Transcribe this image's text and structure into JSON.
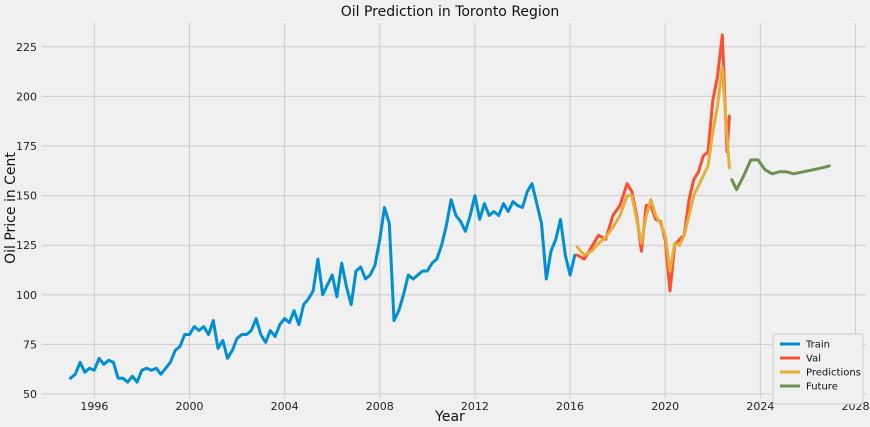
{
  "chart_data": {
    "type": "line",
    "title": "Oil Prediction in Toronto Region",
    "xlabel": "Year",
    "ylabel": "Oil Price in Cent",
    "xlim": [
      1993.8,
      2028.4
    ],
    "ylim": [
      48,
      237
    ],
    "x_ticks": [
      1996,
      2000,
      2004,
      2008,
      2012,
      2016,
      2020,
      2024,
      2028
    ],
    "y_ticks": [
      50,
      75,
      100,
      125,
      150,
      175,
      200,
      225
    ],
    "grid": true,
    "legend_position": "bottom-right",
    "series": [
      {
        "name": "Train",
        "color": "#008fd5",
        "x": [
          1995.0,
          1995.2,
          1995.4,
          1995.6,
          1995.8,
          1996.0,
          1996.2,
          1996.4,
          1996.6,
          1996.8,
          1997.0,
          1997.2,
          1997.4,
          1997.6,
          1997.8,
          1998.0,
          1998.2,
          1998.4,
          1998.6,
          1998.8,
          1999.0,
          1999.2,
          1999.4,
          1999.6,
          1999.8,
          2000.0,
          2000.2,
          2000.4,
          2000.6,
          2000.8,
          2001.0,
          2001.2,
          2001.4,
          2001.6,
          2001.8,
          2002.0,
          2002.2,
          2002.4,
          2002.6,
          2002.8,
          2003.0,
          2003.2,
          2003.4,
          2003.6,
          2003.8,
          2004.0,
          2004.2,
          2004.4,
          2004.6,
          2004.8,
          2005.0,
          2005.2,
          2005.4,
          2005.6,
          2005.8,
          2006.0,
          2006.2,
          2006.4,
          2006.6,
          2006.8,
          2007.0,
          2007.2,
          2007.4,
          2007.6,
          2007.8,
          2008.0,
          2008.2,
          2008.4,
          2008.6,
          2008.8,
          2009.0,
          2009.2,
          2009.4,
          2009.6,
          2009.8,
          2010.0,
          2010.2,
          2010.4,
          2010.6,
          2010.8,
          2011.0,
          2011.2,
          2011.4,
          2011.6,
          2011.8,
          2012.0,
          2012.2,
          2012.4,
          2012.6,
          2012.8,
          2013.0,
          2013.2,
          2013.4,
          2013.6,
          2013.8,
          2014.0,
          2014.2,
          2014.4,
          2014.6,
          2014.8,
          2015.0,
          2015.2,
          2015.4,
          2015.6,
          2015.8,
          2016.0,
          2016.2
        ],
        "values": [
          58,
          60,
          66,
          61,
          63,
          62,
          68,
          65,
          67,
          66,
          58,
          58,
          56,
          59,
          56,
          62,
          63,
          62,
          63,
          60,
          63,
          66,
          72,
          74,
          80,
          80,
          84,
          82,
          84,
          80,
          87,
          73,
          77,
          68,
          72,
          78,
          80,
          80,
          82,
          88,
          80,
          76,
          82,
          79,
          85,
          88,
          86,
          92,
          85,
          95,
          98,
          102,
          118,
          100,
          105,
          110,
          99,
          116,
          104,
          95,
          112,
          114,
          108,
          110,
          115,
          128,
          144,
          136,
          87,
          92,
          100,
          110,
          108,
          110,
          112,
          112,
          116,
          118,
          125,
          135,
          148,
          140,
          137,
          132,
          140,
          150,
          138,
          146,
          140,
          142,
          140,
          146,
          142,
          147,
          145,
          144,
          152,
          156,
          146,
          136,
          108,
          122,
          128,
          138,
          120,
          110,
          120
        ]
      },
      {
        "name": "Val",
        "color": "#fc4f30",
        "x": [
          2016.3,
          2016.6,
          2016.9,
          2017.2,
          2017.5,
          2017.8,
          2018.1,
          2018.4,
          2018.6,
          2018.8,
          2019.0,
          2019.2,
          2019.4,
          2019.6,
          2019.8,
          2020.0,
          2020.2,
          2020.4,
          2020.6,
          2020.8,
          2021.0,
          2021.2,
          2021.4,
          2021.6,
          2021.8,
          2022.0,
          2022.2,
          2022.4,
          2022.6,
          2022.7
        ],
        "values": [
          120,
          118,
          124,
          130,
          128,
          140,
          145,
          156,
          152,
          140,
          122,
          145,
          145,
          138,
          137,
          128,
          102,
          125,
          128,
          130,
          148,
          158,
          162,
          170,
          172,
          198,
          210,
          231,
          172,
          190
        ]
      },
      {
        "name": "Predictions",
        "color": "#e5ae38",
        "x": [
          2016.3,
          2016.6,
          2016.9,
          2017.2,
          2017.5,
          2017.8,
          2018.1,
          2018.4,
          2018.6,
          2018.8,
          2019.0,
          2019.2,
          2019.4,
          2019.6,
          2019.8,
          2020.0,
          2020.2,
          2020.4,
          2020.6,
          2020.8,
          2021.0,
          2021.2,
          2021.4,
          2021.6,
          2021.8,
          2022.0,
          2022.2,
          2022.4,
          2022.6,
          2022.7
        ],
        "values": [
          124,
          120,
          122,
          126,
          129,
          134,
          140,
          150,
          150,
          138,
          126,
          140,
          148,
          140,
          136,
          130,
          112,
          126,
          125,
          130,
          140,
          150,
          155,
          160,
          165,
          182,
          195,
          215,
          180,
          164
        ]
      },
      {
        "name": "Future",
        "color": "#6d904f",
        "x": [
          2022.8,
          2023.0,
          2023.3,
          2023.6,
          2023.9,
          2024.2,
          2024.5,
          2024.8,
          2025.1,
          2025.4,
          2025.8,
          2026.2,
          2026.6,
          2026.9
        ],
        "values": [
          158,
          153,
          160,
          168,
          168,
          163,
          161,
          162,
          162,
          161,
          162,
          163,
          164,
          165
        ]
      }
    ]
  }
}
